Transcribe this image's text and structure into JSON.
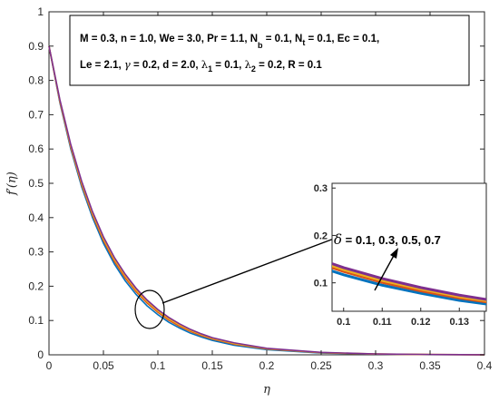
{
  "chart_data": {
    "type": "line",
    "xlabel": "η",
    "ylabel": "f′(η)",
    "xlim": [
      0,
      0.4
    ],
    "ylim": [
      0,
      1
    ],
    "xticks": [
      "0",
      "0.05",
      "0.1",
      "0.15",
      "0.2",
      "0.25",
      "0.3",
      "0.35",
      "0.4"
    ],
    "yticks": [
      "0",
      "0.1",
      "0.2",
      "0.3",
      "0.4",
      "0.5",
      "0.6",
      "0.7",
      "0.8",
      "0.9",
      "1"
    ],
    "grid": false,
    "parameters_line1": "M = 0.3, n = 1.0, We = 3.0, Pr = 1.1, N",
    "parameters_line1_sub1": "b",
    "parameters_line1_mid": " = 0.1, N",
    "parameters_line1_sub2": "t",
    "parameters_line1_end": " = 0.1, Ec = 0.1,",
    "parameters_line2_a": "Le = 2.1, ",
    "parameters_line2_gamma": "γ",
    "parameters_line2_b": " = 0.2, d = 2.0, ",
    "parameters_line2_lambda1": "λ",
    "parameters_line2_sub1": "1",
    "parameters_line2_c": " = 0.1, ",
    "parameters_line2_lambda2": "λ",
    "parameters_line2_sub2": "2",
    "parameters_line2_d": " = 0.2, R = 0.1",
    "annotation_symbol": "δ",
    "annotation_values": " = 0.1, 0.3, 0.5, 0.7",
    "x": [
      0,
      0.01,
      0.02,
      0.03,
      0.04,
      0.05,
      0.06,
      0.07,
      0.08,
      0.09,
      0.1,
      0.11,
      0.12,
      0.13,
      0.14,
      0.15,
      0.17,
      0.2,
      0.25,
      0.3,
      0.35,
      0.4
    ],
    "series": [
      {
        "color": "#0072BD",
        "values": [
          0.9,
          0.735,
          0.6,
          0.49,
          0.4,
          0.325,
          0.265,
          0.216,
          0.176,
          0.143,
          0.117,
          0.095,
          0.078,
          0.063,
          0.052,
          0.042,
          0.028,
          0.015,
          0.005,
          0.002,
          0.0006,
          0.0002
        ]
      },
      {
        "color": "#D95319",
        "values": [
          0.9,
          0.738,
          0.605,
          0.496,
          0.407,
          0.333,
          0.273,
          0.224,
          0.184,
          0.151,
          0.124,
          0.101,
          0.083,
          0.068,
          0.056,
          0.046,
          0.031,
          0.017,
          0.006,
          0.0022,
          0.0008,
          0.0003
        ]
      },
      {
        "color": "#EDB120",
        "values": [
          0.9,
          0.741,
          0.609,
          0.501,
          0.412,
          0.339,
          0.279,
          0.23,
          0.189,
          0.156,
          0.128,
          0.105,
          0.087,
          0.071,
          0.059,
          0.048,
          0.033,
          0.018,
          0.0065,
          0.0024,
          0.0009,
          0.0003
        ]
      },
      {
        "color": "#7E2F8E",
        "values": [
          0.9,
          0.744,
          0.613,
          0.506,
          0.417,
          0.344,
          0.284,
          0.235,
          0.194,
          0.16,
          0.132,
          0.109,
          0.09,
          0.074,
          0.061,
          0.05,
          0.035,
          0.019,
          0.007,
          0.0026,
          0.001,
          0.0003
        ]
      }
    ],
    "inset": {
      "xlim": [
        0.097,
        0.137
      ],
      "ylim": [
        0.04,
        0.31
      ],
      "xticks": [
        "0.1",
        "0.11",
        "0.12",
        "0.13"
      ],
      "yticks": [
        "0.1",
        "0.2",
        "0.3"
      ]
    }
  }
}
